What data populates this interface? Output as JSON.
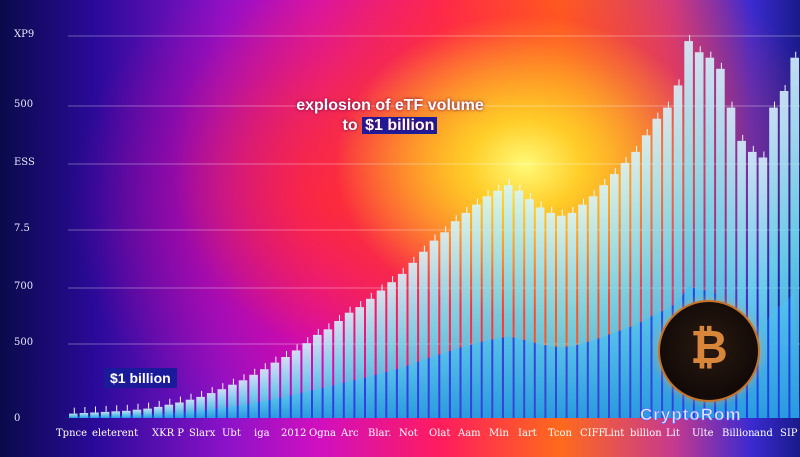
{
  "chart_data": {
    "type": "bar",
    "title": "",
    "xlabel": "",
    "ylabel": "",
    "y_tick_labels": [
      "XP9",
      "500",
      "ESS",
      "7.5",
      "700",
      "500",
      "0"
    ],
    "x_tick_labels": [
      "Tpnce",
      "eleterent",
      "XKR P",
      "Slarx",
      "Ubt",
      "iga",
      "2012",
      "Ogna",
      "Arc",
      "Blar.",
      "Not",
      "Olat",
      "Aam",
      "Min",
      "Iart",
      "Tcon",
      "CIFF",
      "Lint",
      "billion",
      "Lit",
      "Ulte",
      "Billion",
      "and",
      "SIP"
    ],
    "ylim": [
      0,
      700
    ],
    "grid": true,
    "series": [
      {
        "values": [
          8,
          9,
          10,
          11,
          12,
          13,
          15,
          17,
          20,
          24,
          28,
          33,
          38,
          45,
          52,
          60,
          68,
          78,
          88,
          100,
          110,
          122,
          135,
          150,
          160,
          175,
          190,
          200,
          215,
          230,
          245,
          260,
          280,
          300,
          320,
          335,
          355,
          370,
          385,
          400,
          410,
          420,
          410,
          395,
          380,
          370,
          365,
          370,
          385,
          400,
          420,
          440,
          460,
          480,
          510,
          540,
          560,
          600,
          680,
          660,
          650,
          630,
          560,
          500,
          480,
          470,
          560,
          590,
          650
        ]
      }
    ],
    "annotations": [
      {
        "text_line1": "explosion of eTF volume",
        "text_line2_prefix": "to",
        "text_line2_highlight": "$1 billion"
      },
      {
        "text": "$1 billion"
      }
    ]
  },
  "brand": {
    "logo_icon": "bitcoin-icon",
    "logo_glyph": "₿",
    "watermark": "CryptoRom"
  }
}
